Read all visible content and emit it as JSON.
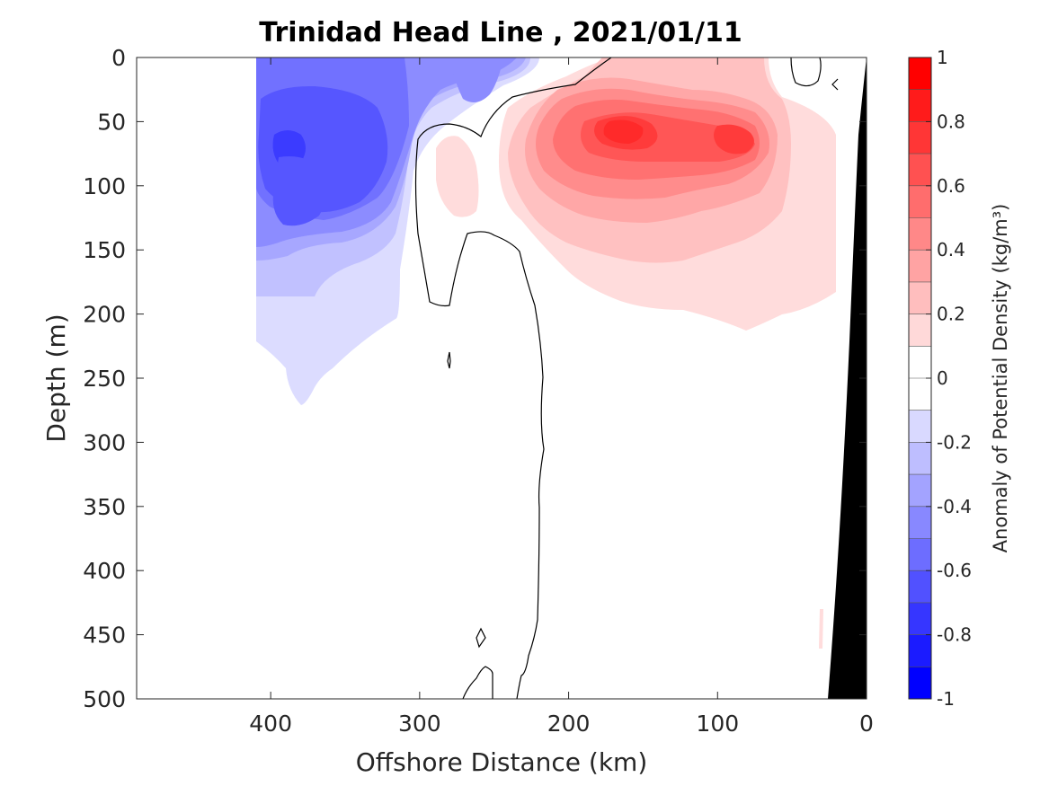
{
  "chart_data": {
    "type": "contour",
    "title": "Trinidad Head Line , 2021/01/11",
    "xlabel": "Offshore Distance (km)",
    "ylabel": "Depth (m)",
    "x_axis": {
      "lim": [
        490,
        0
      ],
      "ticks": [
        400,
        300,
        200,
        100,
        0
      ],
      "direction": "reversed"
    },
    "y_axis": {
      "lim": [
        0,
        500
      ],
      "ticks": [
        0,
        50,
        100,
        150,
        200,
        250,
        300,
        350,
        400,
        450,
        500
      ],
      "direction": "reversed"
    },
    "grid": false,
    "colorbar": {
      "label": "Anomaly of Potential Density (kg/m³)",
      "ticks": [
        "1",
        "0.8",
        "0.6",
        "0.4",
        "0.2",
        "0",
        "-0.2",
        "-0.4",
        "-0.6",
        "-0.8",
        "-1"
      ],
      "range": [
        -1,
        1
      ],
      "levels": [
        {
          "from": 0.9,
          "to": 1.0,
          "color": "#ff0000"
        },
        {
          "from": 0.8,
          "to": 0.9,
          "color": "#ff1b1b"
        },
        {
          "from": 0.7,
          "to": 0.8,
          "color": "#ff3636"
        },
        {
          "from": 0.6,
          "to": 0.7,
          "color": "#ff5151"
        },
        {
          "from": 0.5,
          "to": 0.6,
          "color": "#ff6d6d"
        },
        {
          "from": 0.4,
          "to": 0.5,
          "color": "#ff8888"
        },
        {
          "from": 0.3,
          "to": 0.4,
          "color": "#ffa3a3"
        },
        {
          "from": 0.2,
          "to": 0.3,
          "color": "#ffbebe"
        },
        {
          "from": 0.1,
          "to": 0.2,
          "color": "#ffd9d9"
        },
        {
          "from": 0.0,
          "to": 0.1,
          "color": "#ffffff"
        },
        {
          "from": -0.1,
          "to": 0.0,
          "color": "#ffffff"
        },
        {
          "from": -0.2,
          "to": -0.1,
          "color": "#d9d9ff"
        },
        {
          "from": -0.3,
          "to": -0.2,
          "color": "#bebeff"
        },
        {
          "from": -0.4,
          "to": -0.3,
          "color": "#a3a3ff"
        },
        {
          "from": -0.5,
          "to": -0.4,
          "color": "#8888ff"
        },
        {
          "from": -0.6,
          "to": -0.5,
          "color": "#6d6dff"
        },
        {
          "from": -0.7,
          "to": -0.6,
          "color": "#5151ff"
        },
        {
          "from": -0.8,
          "to": -0.7,
          "color": "#3636ff"
        },
        {
          "from": -0.9,
          "to": -0.8,
          "color": "#1b1bff"
        },
        {
          "from": -1.0,
          "to": -0.9,
          "color": "#0000ff"
        }
      ]
    },
    "regions": [
      {
        "name": "negative anomaly (upper, offshore)",
        "x_km_range": [
          410,
          210
        ],
        "depth_m_range": [
          0,
          270
        ],
        "min_anomaly": -0.8
      },
      {
        "name": "positive anomaly (nearshore core)",
        "x_km_range": [
          250,
          40
        ],
        "depth_m_range": [
          0,
          210
        ],
        "max_anomaly": 0.8
      },
      {
        "name": "positive anomaly (small)",
        "x_km_range": [
          285,
          260
        ],
        "depth_m_range": [
          60,
          130
        ],
        "max_anomaly": 0.2
      }
    ],
    "zero_contour_color": "#000000",
    "bathymetry_color": "#000000"
  }
}
